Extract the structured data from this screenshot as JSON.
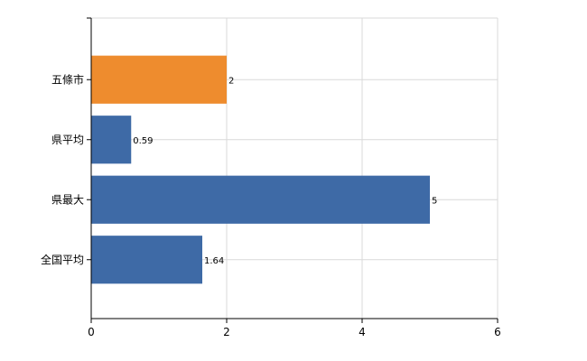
{
  "chart_data": {
    "type": "bar",
    "orientation": "horizontal",
    "categories": [
      "五條市",
      "県平均",
      "県最大",
      "全国平均"
    ],
    "values": [
      2,
      0.59,
      5,
      1.64
    ],
    "data_labels": [
      "2",
      "0.59",
      "5",
      "1.64"
    ],
    "bar_colors": [
      "#ee8c2e",
      "#3e6aa6",
      "#3e6aa6",
      "#3e6aa6"
    ],
    "xlim": [
      0,
      6
    ],
    "x_ticks": [
      0,
      2,
      4,
      6
    ],
    "grid": true,
    "title": "",
    "xlabel": "",
    "ylabel": ""
  }
}
